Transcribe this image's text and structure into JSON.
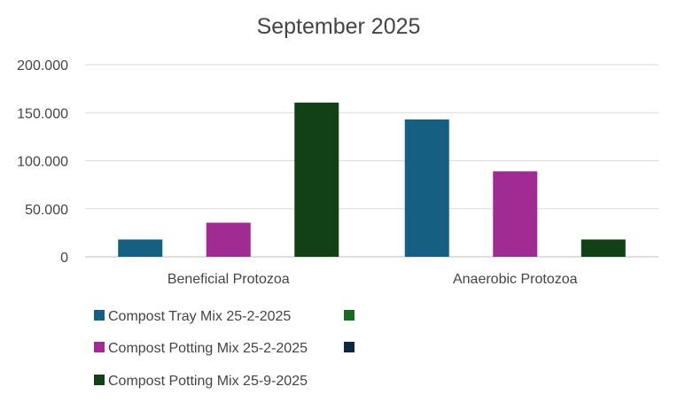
{
  "chart_data": {
    "type": "bar",
    "title": "September 2025",
    "categories": [
      "Beneficial Protozoa",
      "Anaerobic Protozoa"
    ],
    "series": [
      {
        "name": "Compost Tray Mix 25-2-2025",
        "color": "#156082",
        "values": [
          18000,
          143000
        ]
      },
      {
        "name": "Compost Potting Mix 25-2-2025",
        "color": "#A02B93",
        "values": [
          35500,
          89000
        ]
      },
      {
        "name": "Compost Potting Mix 25-9-2025",
        "color": "#124116",
        "values": [
          160500,
          18000
        ]
      }
    ],
    "extra_legend_swatches": [
      {
        "color": "#196B24"
      },
      {
        "color": "#0E2841"
      }
    ],
    "yticks": [
      "0",
      "50.000",
      "100.000",
      "150.000",
      "200.000"
    ],
    "ytick_values": [
      0,
      50000,
      100000,
      150000,
      200000
    ],
    "ylim": [
      0,
      200000
    ],
    "grid": true,
    "legend_position": "bottom-left"
  }
}
